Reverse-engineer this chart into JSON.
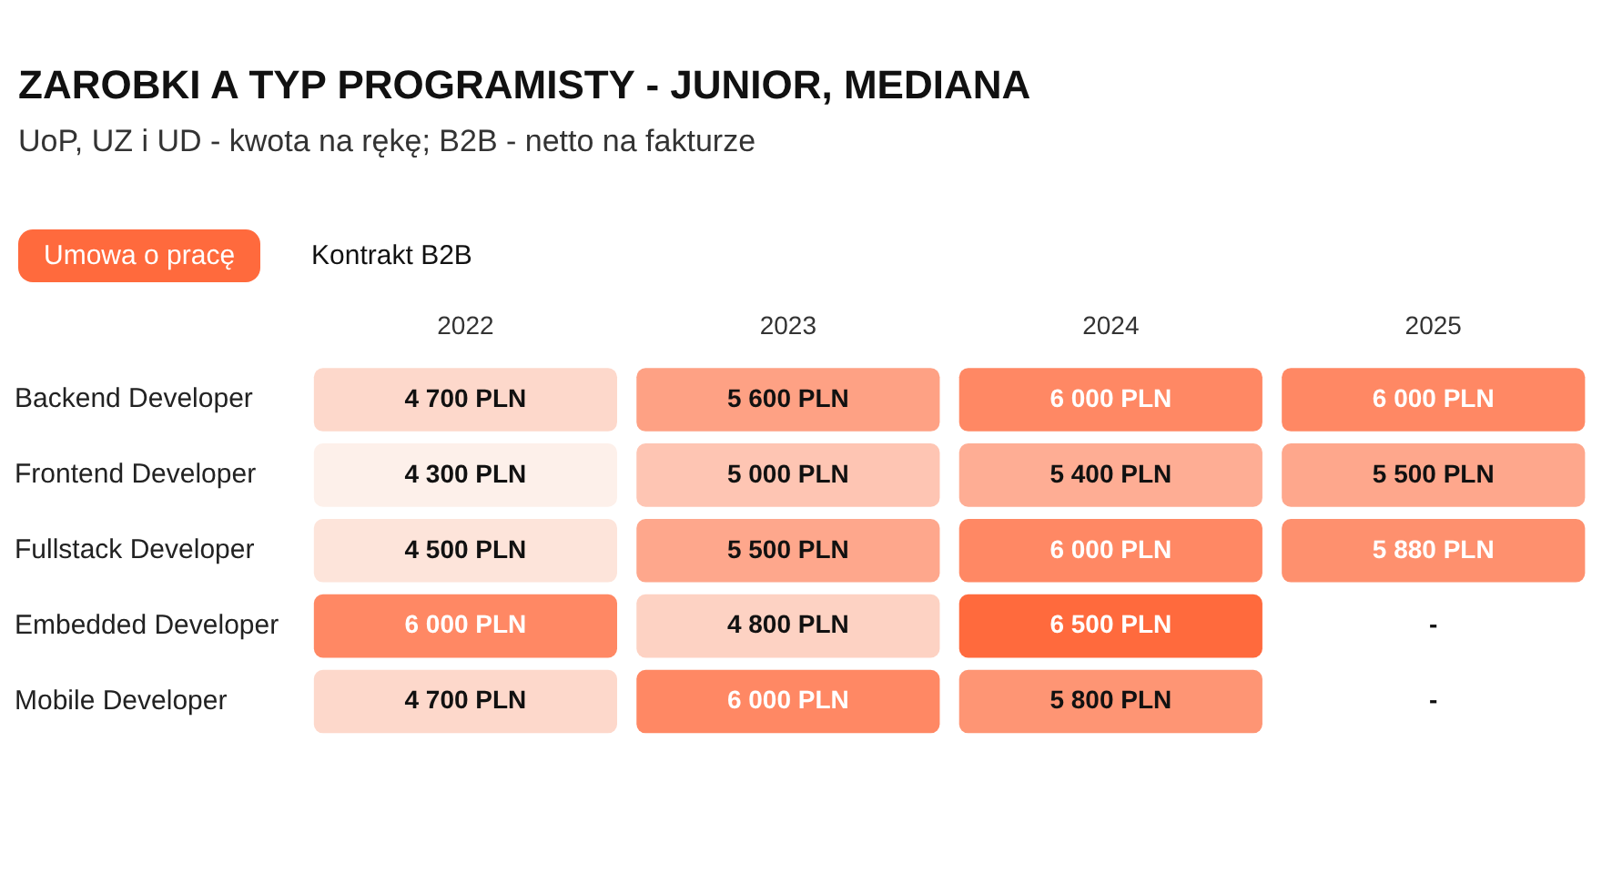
{
  "chart_data": {
    "type": "heatmap",
    "title": "ZAROBKI A TYP PROGRAMISTY - JUNIOR, MEDIANA",
    "subtitle": "UoP, UZ i UD - kwota na rękę; B2B - netto na fakturze",
    "annotations": [
      "Umowa o pracę",
      "Kontrakt B2B"
    ],
    "categories": [
      "2022",
      "2023",
      "2024",
      "2025"
    ],
    "y_categories": [
      "Backend Developer",
      "Frontend Developer",
      "Fullstack Developer",
      "Embedded Developer",
      "Mobile Developer"
    ],
    "cells": [
      [
        4700,
        5600,
        6000,
        6000
      ],
      [
        4300,
        5000,
        5400,
        5500
      ],
      [
        4500,
        5500,
        6000,
        5880
      ],
      [
        6000,
        4800,
        6500,
        null
      ],
      [
        4700,
        6000,
        5800,
        null
      ]
    ],
    "cell_labels": [
      [
        "4 700 PLN",
        "5 600 PLN",
        "6 000 PLN",
        "6 000 PLN"
      ],
      [
        "4 300 PLN",
        "5 000 PLN",
        "5 400 PLN",
        "5 500 PLN"
      ],
      [
        "4 500 PLN",
        "5 500 PLN",
        "6 000 PLN",
        "5 880 PLN"
      ],
      [
        "6 000 PLN",
        "4 800 PLN",
        "6 500 PLN",
        "-"
      ],
      [
        "4 700 PLN",
        "6 000 PLN",
        "5 800 PLN",
        "-"
      ]
    ]
  }
}
